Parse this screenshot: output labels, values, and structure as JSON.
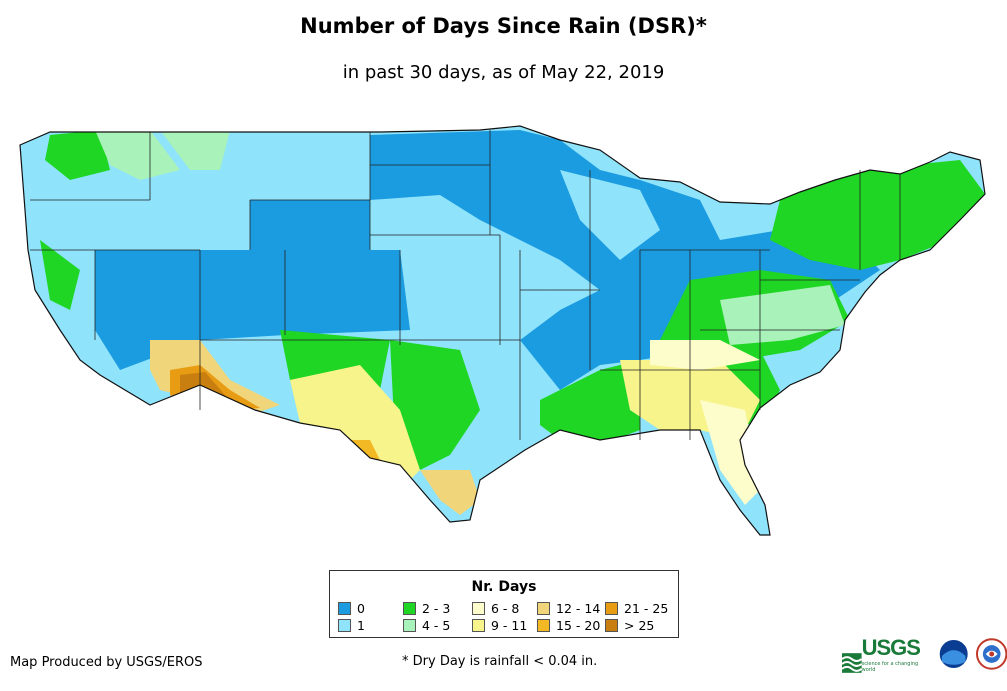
{
  "header": {
    "title": "Number of Days Since Rain (DSR)*",
    "subtitle": "in past 30 days, as of May 22, 2019"
  },
  "legend": {
    "title": "Nr. Days",
    "items": [
      {
        "label": "0",
        "color": "#1b9be0"
      },
      {
        "label": "1",
        "color": "#8fe3fb"
      },
      {
        "label": "2 - 3",
        "color": "#1fd624"
      },
      {
        "label": "4 - 5",
        "color": "#a9f2b9"
      },
      {
        "label": "6 - 8",
        "color": "#fdfccb"
      },
      {
        "label": "9 - 11",
        "color": "#f8f48c"
      },
      {
        "label": "12 - 14",
        "color": "#f1d57b"
      },
      {
        "label": "15 - 20",
        "color": "#f2b925"
      },
      {
        "label": "21 - 25",
        "color": "#e89c13"
      },
      {
        "label": "> 25",
        "color": "#c97f10"
      }
    ]
  },
  "footer": {
    "credit": "Map Produced by USGS/EROS",
    "note": "* Dry Day is rainfall < 0.04 in.",
    "usgs_logo": "USGS",
    "usgs_tagline": "science for a changing world"
  },
  "icons": [
    "usgs-logo",
    "noaa-logo",
    "nws-logo"
  ]
}
